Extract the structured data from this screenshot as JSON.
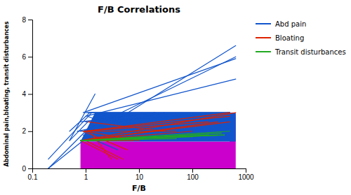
{
  "chart_data": {
    "type": "line",
    "title": "F/B Correlations",
    "x_label": "F/B",
    "y_label": "Abdominal pain,bloating, transit disturbances",
    "log": "x",
    "grid": false,
    "legend": "right",
    "xlim": [
      0.1,
      1000
    ],
    "ylim": [
      0,
      8
    ],
    "xticks": [
      0.1,
      1,
      10,
      100,
      1000
    ],
    "yticks": [
      0,
      2,
      4,
      6,
      8
    ],
    "regions": [
      {
        "color": "#cc00cc",
        "x": [
          0.8,
          0.8,
          500,
          650,
          650
        ],
        "values": [
          0,
          1.45,
          1.45,
          3.0,
          0
        ]
      },
      {
        "color": "#1155cc",
        "x": [
          0.8,
          1.5,
          10,
          100,
          500,
          650,
          650,
          500,
          0.8
        ],
        "values": [
          1.45,
          3.0,
          3.0,
          3.0,
          3.0,
          3.0,
          1.45,
          1.45,
          1.45
        ]
      }
    ],
    "series": [
      {
        "name": "Abd pain",
        "color": "#1155cc",
        "lines": [
          {
            "x": [
              0.9,
              650
            ],
            "values": [
              1.5,
              6.6
            ]
          },
          {
            "x": [
              0.9,
              650
            ],
            "values": [
              2.0,
              6.0
            ]
          },
          {
            "x": [
              0.9,
              650
            ],
            "values": [
              3.0,
              5.9
            ]
          },
          {
            "x": [
              1.0,
              650
            ],
            "values": [
              2.8,
              4.8
            ]
          },
          {
            "x": [
              1.0,
              500
            ],
            "values": [
              3.0,
              3.0
            ]
          },
          {
            "x": [
              1.0,
              500
            ],
            "values": [
              2.5,
              3.0
            ]
          },
          {
            "x": [
              1.1,
              500
            ],
            "values": [
              3.0,
              3.0
            ]
          },
          {
            "x": [
              1.2,
              500
            ],
            "values": [
              3.0,
              3.0
            ]
          },
          {
            "x": [
              1.0,
              500
            ],
            "values": [
              2.0,
              3.0
            ]
          },
          {
            "x": [
              0.8,
              500
            ],
            "values": [
              1.5,
              3.0
            ]
          },
          {
            "x": [
              0.8,
              500
            ],
            "values": [
              2.0,
              3.0
            ]
          },
          {
            "x": [
              0.7,
              30
            ],
            "values": [
              2.0,
              3.0
            ]
          },
          {
            "x": [
              0.8,
              20
            ],
            "values": [
              2.5,
              3.0
            ]
          },
          {
            "x": [
              0.9,
              15
            ],
            "values": [
              1.5,
              1.5
            ]
          },
          {
            "x": [
              1.5,
              0.5
            ],
            "values": [
              4.0,
              1.5
            ]
          },
          {
            "x": [
              1.2,
              0.5
            ],
            "values": [
              3.0,
              2.0
            ]
          },
          {
            "x": [
              1.1,
              0.5
            ],
            "values": [
              2.5,
              1.5
            ]
          },
          {
            "x": [
              0.9,
              0.2
            ],
            "values": [
              1.5,
              0.0
            ]
          },
          {
            "x": [
              1.0,
              0.2
            ],
            "values": [
              2.0,
              0.0
            ]
          },
          {
            "x": [
              1.3,
              0.2
            ],
            "values": [
              3.0,
              0.5
            ]
          },
          {
            "x": [
              0.8,
              2.0
            ],
            "values": [
              1.5,
              2.0
            ]
          },
          {
            "x": [
              0.9,
              3.0
            ],
            "values": [
              1.5,
              1.5
            ]
          },
          {
            "x": [
              1.1,
              2.0
            ],
            "values": [
              2.8,
              2.5
            ]
          },
          {
            "x": [
              0.7,
              5.0
            ],
            "values": [
              2.0,
              2.0
            ]
          },
          {
            "x": [
              0.8,
              8.0
            ],
            "values": [
              1.5,
              2.5
            ]
          },
          {
            "x": [
              1.0,
              12
            ],
            "values": [
              2.0,
              2.5
            ]
          },
          {
            "x": [
              0.9,
              4.0
            ],
            "values": [
              1.8,
              1.0
            ]
          }
        ]
      },
      {
        "name": "Bloating",
        "color": "#dd2200",
        "lines": [
          {
            "x": [
              0.8,
              650
            ],
            "values": [
              1.5,
              3.0
            ]
          },
          {
            "x": [
              0.8,
              500
            ],
            "values": [
              1.5,
              2.5
            ]
          },
          {
            "x": [
              0.9,
              500
            ],
            "values": [
              2.0,
              2.8
            ]
          },
          {
            "x": [
              1.0,
              500
            ],
            "values": [
              2.0,
              3.0
            ]
          },
          {
            "x": [
              0.9,
              300
            ],
            "values": [
              1.5,
              2.5
            ]
          },
          {
            "x": [
              1.0,
              200
            ],
            "values": [
              2.0,
              2.5
            ]
          },
          {
            "x": [
              0.8,
              100
            ],
            "values": [
              1.5,
              2.0
            ]
          },
          {
            "x": [
              0.9,
              50
            ],
            "values": [
              2.0,
              2.0
            ]
          },
          {
            "x": [
              1.1,
              30
            ],
            "values": [
              2.5,
              2.0
            ]
          },
          {
            "x": [
              1.0,
              10
            ],
            "values": [
              2.0,
              1.5
            ]
          },
          {
            "x": [
              0.8,
              8
            ],
            "values": [
              1.5,
              1.5
            ]
          },
          {
            "x": [
              0.9,
              6
            ],
            "values": [
              2.0,
              1.0
            ]
          },
          {
            "x": [
              1.0,
              5
            ],
            "values": [
              1.5,
              0.5
            ]
          },
          {
            "x": [
              0.8,
              4
            ],
            "values": [
              1.5,
              0.5
            ]
          },
          {
            "x": [
              1.2,
              3
            ],
            "values": [
              2.0,
              0.5
            ]
          }
        ]
      },
      {
        "name": "Transit disturbances",
        "color": "#22aa22",
        "lines": [
          {
            "x": [
              0.8,
              500
            ],
            "values": [
              1.5,
              2.0
            ]
          },
          {
            "x": [
              0.8,
              400
            ],
            "values": [
              1.5,
              1.8
            ]
          },
          {
            "x": [
              0.9,
              350
            ],
            "values": [
              1.5,
              1.9
            ]
          },
          {
            "x": [
              1.0,
              400
            ],
            "values": [
              1.5,
              1.8
            ]
          },
          {
            "x": [
              0.9,
              300
            ],
            "values": [
              1.5,
              1.8
            ]
          },
          {
            "x": [
              1.0,
              200
            ],
            "values": [
              1.5,
              1.8
            ]
          },
          {
            "x": [
              0.8,
              100
            ],
            "values": [
              1.5,
              1.7
            ]
          },
          {
            "x": [
              0.9,
              50
            ],
            "values": [
              1.5,
              1.6
            ]
          }
        ]
      }
    ]
  }
}
